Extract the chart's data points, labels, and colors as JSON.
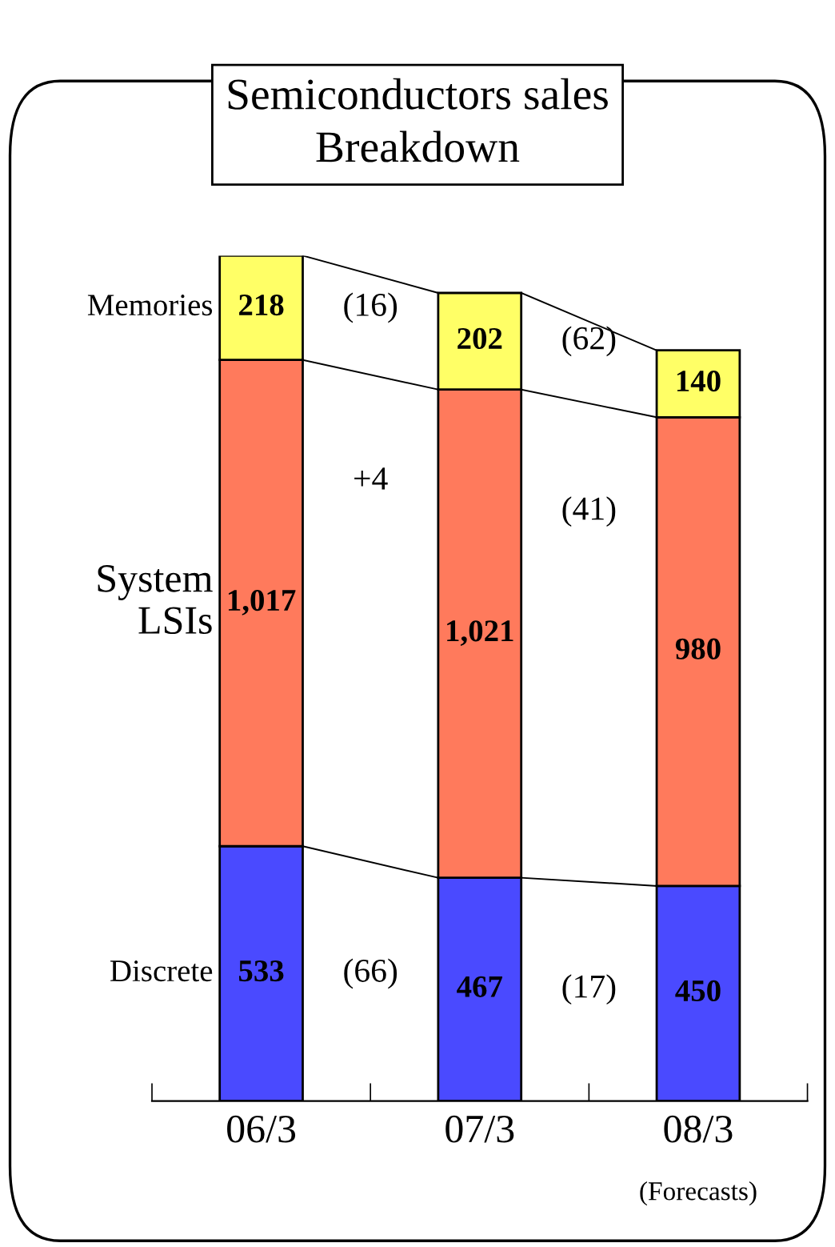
{
  "chart_data": {
    "type": "bar",
    "stacked": true,
    "title": "Semiconductors sales\nBreakdown",
    "categories": [
      "06/3",
      "07/3",
      "08/3"
    ],
    "series": [
      {
        "name": "Discrete",
        "color": "#4a4aff",
        "values": [
          533,
          467,
          450
        ],
        "value_labels": [
          "533",
          "467",
          "450"
        ]
      },
      {
        "name": "System\nLSIs",
        "color": "#ff7a5c",
        "values": [
          1017,
          1021,
          980
        ],
        "value_labels": [
          "1,017",
          "1,021",
          "980"
        ]
      },
      {
        "name": "Memories",
        "color": "#ffff66",
        "values": [
          218,
          202,
          140
        ],
        "value_labels": [
          "218",
          "202",
          "140"
        ]
      }
    ],
    "annotations": [
      "(66)",
      "(17)",
      "+4",
      "(41)",
      "(16)",
      "(62)",
      "(Forecasts)"
    ],
    "legend": false,
    "grid": false
  }
}
